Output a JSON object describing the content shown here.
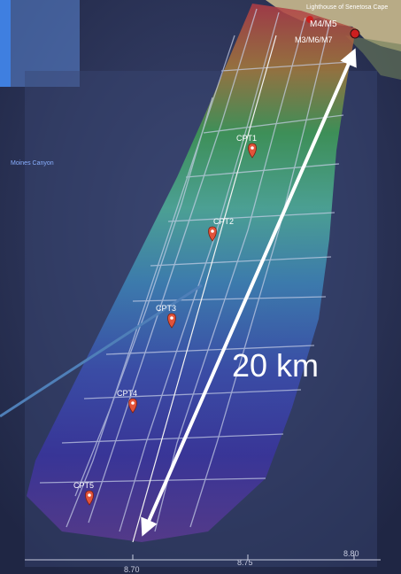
{
  "map": {
    "labels": {
      "lighthouse": "Lighthouse of Senetosa Cape",
      "canyon": "Moines Canyon",
      "station_upper": "M4/M5",
      "station_lower": "M3/M6/M7",
      "distance": "20 km"
    },
    "markers": [
      {
        "label": "CPT1"
      },
      {
        "label": "CPT2"
      },
      {
        "label": "CPT3"
      },
      {
        "label": "CPT4"
      },
      {
        "label": "CPT5"
      }
    ],
    "axis": {
      "x_ticks": [
        "8.70",
        "8.75",
        "8.80"
      ]
    },
    "colors": {
      "background": "#2b3358",
      "marker": "#e2533a",
      "station": "#cc1f1f",
      "callout": "#4f7fb8",
      "arrow": "#ffffff",
      "accent_box": "#3f7fe0"
    }
  }
}
